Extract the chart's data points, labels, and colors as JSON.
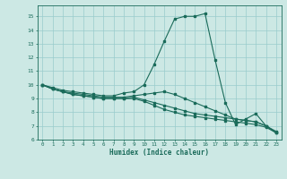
{
  "xlabel": "Humidex (Indice chaleur)",
  "xlim": [
    -0.5,
    23.5
  ],
  "ylim": [
    6,
    15.8
  ],
  "yticks": [
    6,
    7,
    8,
    9,
    10,
    11,
    12,
    13,
    14,
    15
  ],
  "xticks": [
    0,
    1,
    2,
    3,
    4,
    5,
    6,
    7,
    8,
    9,
    10,
    11,
    12,
    13,
    14,
    15,
    16,
    17,
    18,
    19,
    20,
    21,
    22,
    23
  ],
  "background_color": "#cce8e4",
  "grid_color": "#99cccc",
  "line_color": "#1a6b5a",
  "lines": [
    {
      "x": [
        0,
        1,
        2,
        3,
        4,
        5,
        6,
        7,
        8,
        9,
        10,
        11,
        12,
        13,
        14,
        15,
        16,
        17,
        18,
        19,
        20,
        21,
        22,
        23
      ],
      "y": [
        10.0,
        9.8,
        9.6,
        9.5,
        9.4,
        9.3,
        9.2,
        9.2,
        9.4,
        9.5,
        10.0,
        11.5,
        13.2,
        14.8,
        15.0,
        15.0,
        15.2,
        11.8,
        8.7,
        7.1,
        7.5,
        7.9,
        7.0,
        6.5
      ]
    },
    {
      "x": [
        0,
        1,
        2,
        3,
        4,
        5,
        6,
        7,
        8,
        9,
        10,
        11,
        12,
        13,
        14,
        15,
        16,
        17,
        18,
        19,
        20,
        21,
        22,
        23
      ],
      "y": [
        10.0,
        9.7,
        9.5,
        9.4,
        9.3,
        9.2,
        9.1,
        9.1,
        9.1,
        9.2,
        9.3,
        9.4,
        9.5,
        9.3,
        9.0,
        8.7,
        8.4,
        8.1,
        7.8,
        7.5,
        7.4,
        7.3,
        7.0,
        6.6
      ]
    },
    {
      "x": [
        0,
        1,
        2,
        3,
        4,
        5,
        6,
        7,
        8,
        9,
        10,
        11,
        12,
        13,
        14,
        15,
        16,
        17,
        18,
        19,
        20,
        21,
        22,
        23
      ],
      "y": [
        10.0,
        9.7,
        9.5,
        9.3,
        9.2,
        9.1,
        9.0,
        9.0,
        9.0,
        9.1,
        8.9,
        8.7,
        8.5,
        8.3,
        8.1,
        7.9,
        7.8,
        7.7,
        7.6,
        7.5,
        7.4,
        7.3,
        7.0,
        6.5
      ]
    },
    {
      "x": [
        0,
        1,
        2,
        3,
        4,
        5,
        6,
        7,
        8,
        9,
        10,
        11,
        12,
        13,
        14,
        15,
        16,
        17,
        18,
        19,
        20,
        21,
        22,
        23
      ],
      "y": [
        10.0,
        9.7,
        9.5,
        9.3,
        9.2,
        9.1,
        9.0,
        9.0,
        9.0,
        9.0,
        8.8,
        8.5,
        8.2,
        8.0,
        7.8,
        7.7,
        7.6,
        7.5,
        7.4,
        7.3,
        7.2,
        7.1,
        6.9,
        6.5
      ]
    }
  ]
}
